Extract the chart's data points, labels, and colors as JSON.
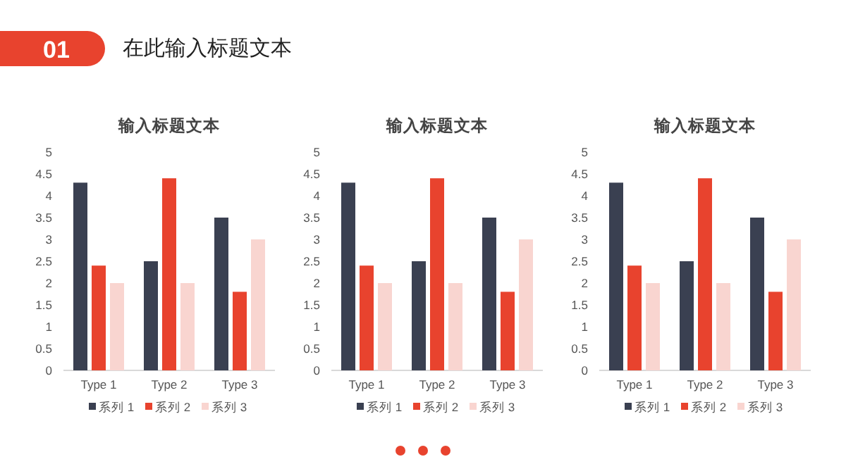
{
  "chart_data": [
    {
      "type": "other",
      "title": "在此输入标题文本",
      "annotations": [
        "01"
      ]
    },
    {
      "type": "bar",
      "title": "输入标题文本",
      "categories": [
        "Type 1",
        "Type 2",
        "Type 3"
      ],
      "ylim": [
        0,
        5
      ],
      "yticks": [
        0,
        0.5,
        1,
        1.5,
        2,
        2.5,
        3,
        3.5,
        4,
        4.5,
        5
      ],
      "legend": "bottom",
      "series": [
        {
          "name": "系列 1",
          "color": "#3a4051",
          "values": [
            4.3,
            2.5,
            3.5
          ]
        },
        {
          "name": "系列 2",
          "color": "#e8432e",
          "values": [
            2.4,
            4.4,
            1.8
          ]
        },
        {
          "name": "系列 3",
          "color": "#f9d5d0",
          "values": [
            2,
            2,
            3
          ]
        }
      ]
    },
    {
      "type": "bar",
      "title": "输入标题文本",
      "categories": [
        "Type 1",
        "Type 2",
        "Type 3"
      ],
      "ylim": [
        0,
        5
      ],
      "yticks": [
        0,
        0.5,
        1,
        1.5,
        2,
        2.5,
        3,
        3.5,
        4,
        4.5,
        5
      ],
      "legend": "bottom",
      "series": [
        {
          "name": "系列 1",
          "color": "#3a4051",
          "values": [
            4.3,
            2.5,
            3.5
          ]
        },
        {
          "name": "系列 2",
          "color": "#e8432e",
          "values": [
            2.4,
            4.4,
            1.8
          ]
        },
        {
          "name": "系列 3",
          "color": "#f9d5d0",
          "values": [
            2,
            2,
            3
          ]
        }
      ]
    },
    {
      "type": "bar",
      "title": "输入标题文本",
      "categories": [
        "Type 1",
        "Type 2",
        "Type 3"
      ],
      "ylim": [
        0,
        5
      ],
      "yticks": [
        0,
        0.5,
        1,
        1.5,
        2,
        2.5,
        3,
        3.5,
        4,
        4.5,
        5
      ],
      "legend": "bottom",
      "series": [
        {
          "name": "系列 1",
          "color": "#3a4051",
          "values": [
            4.3,
            2.5,
            3.5
          ]
        },
        {
          "name": "系列 2",
          "color": "#e8432e",
          "values": [
            2.4,
            4.4,
            1.8
          ]
        },
        {
          "name": "系列 3",
          "color": "#f9d5d0",
          "values": [
            2,
            2,
            3
          ]
        }
      ]
    }
  ]
}
